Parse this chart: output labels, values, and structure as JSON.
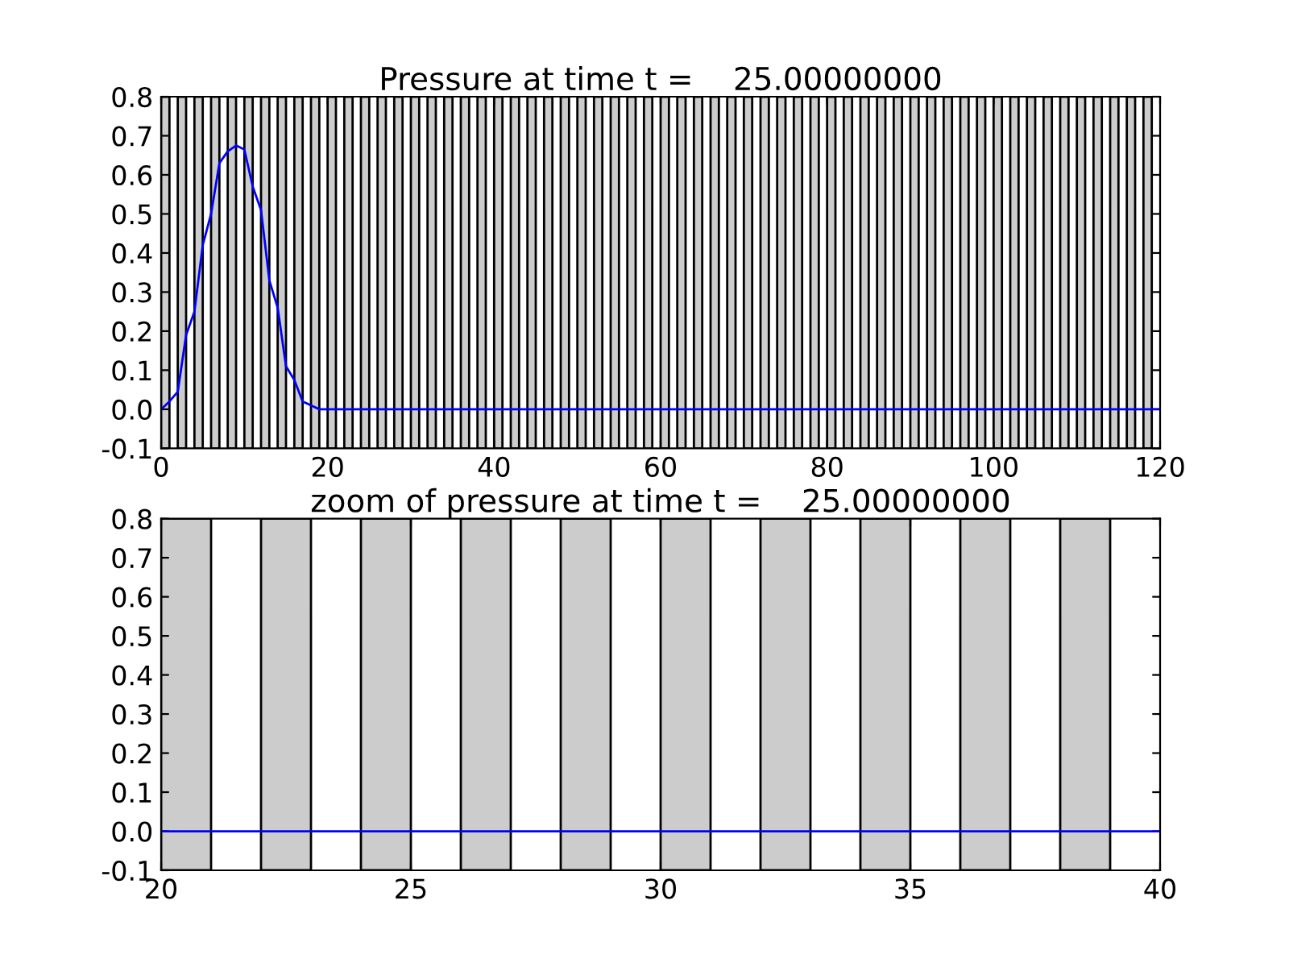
{
  "chart_data": [
    {
      "type": "line",
      "title": "Pressure at time t =    25.00000000",
      "series": [
        {
          "color": "#0000ff",
          "x": [
            0,
            1,
            2,
            3,
            4,
            5,
            6,
            7,
            8,
            9,
            10,
            11,
            12,
            13,
            14,
            15,
            16,
            17,
            18,
            19,
            20,
            120
          ],
          "values": [
            0,
            0.02,
            0.045,
            0.19,
            0.25,
            0.42,
            0.5,
            0.63,
            0.66,
            0.675,
            0.665,
            0.57,
            0.51,
            0.33,
            0.26,
            0.11,
            0.075,
            0.02,
            0.01,
            0,
            0,
            0
          ]
        }
      ],
      "xlim": [
        0,
        120
      ],
      "xticks": [
        0,
        20,
        40,
        60,
        80,
        100,
        120
      ],
      "ylim": [
        -0.1,
        0.8
      ],
      "yticks": [
        -0.1,
        {
          "value": 0,
          "label": "0.0"
        },
        0.1,
        0.2,
        0.3,
        0.4,
        0.5,
        0.6,
        0.7,
        0.8
      ],
      "bands": [
        {
          "axis": "x",
          "from": 0,
          "to": 1,
          "color": "#cccccc"
        },
        {
          "axis": "x",
          "from": 2,
          "to": 3,
          "color": "#cccccc"
        },
        {
          "axis": "x",
          "from": 4,
          "to": 5,
          "color": "#cccccc"
        },
        {
          "axis": "x",
          "from": 6,
          "to": 7,
          "color": "#cccccc"
        },
        {
          "axis": "x",
          "from": 8,
          "to": 9,
          "color": "#cccccc"
        },
        {
          "axis": "x",
          "from": 10,
          "to": 11,
          "color": "#cccccc"
        },
        {
          "axis": "x",
          "from": 12,
          "to": 13,
          "color": "#cccccc"
        },
        {
          "axis": "x",
          "from": 14,
          "to": 15,
          "color": "#cccccc"
        },
        {
          "axis": "x",
          "from": 16,
          "to": 17,
          "color": "#cccccc"
        },
        {
          "axis": "x",
          "from": 18,
          "to": 19,
          "color": "#cccccc"
        },
        {
          "axis": "x",
          "from": 20,
          "to": 21,
          "color": "#cccccc"
        },
        {
          "axis": "x",
          "from": 22,
          "to": 23,
          "color": "#cccccc"
        },
        {
          "axis": "x",
          "from": 24,
          "to": 25,
          "color": "#cccccc"
        },
        {
          "axis": "x",
          "from": 26,
          "to": 27,
          "color": "#cccccc"
        },
        {
          "axis": "x",
          "from": 28,
          "to": 29,
          "color": "#cccccc"
        },
        {
          "axis": "x",
          "from": 30,
          "to": 31,
          "color": "#cccccc"
        },
        {
          "axis": "x",
          "from": 32,
          "to": 33,
          "color": "#cccccc"
        },
        {
          "axis": "x",
          "from": 34,
          "to": 35,
          "color": "#cccccc"
        },
        {
          "axis": "x",
          "from": 36,
          "to": 37,
          "color": "#cccccc"
        },
        {
          "axis": "x",
          "from": 38,
          "to": 39,
          "color": "#cccccc"
        },
        {
          "axis": "x",
          "from": 40,
          "to": 41,
          "color": "#cccccc"
        },
        {
          "axis": "x",
          "from": 42,
          "to": 43,
          "color": "#cccccc"
        },
        {
          "axis": "x",
          "from": 44,
          "to": 45,
          "color": "#cccccc"
        },
        {
          "axis": "x",
          "from": 46,
          "to": 47,
          "color": "#cccccc"
        },
        {
          "axis": "x",
          "from": 48,
          "to": 49,
          "color": "#cccccc"
        },
        {
          "axis": "x",
          "from": 50,
          "to": 51,
          "color": "#cccccc"
        },
        {
          "axis": "x",
          "from": 52,
          "to": 53,
          "color": "#cccccc"
        },
        {
          "axis": "x",
          "from": 54,
          "to": 55,
          "color": "#cccccc"
        },
        {
          "axis": "x",
          "from": 56,
          "to": 57,
          "color": "#cccccc"
        },
        {
          "axis": "x",
          "from": 58,
          "to": 59,
          "color": "#cccccc"
        },
        {
          "axis": "x",
          "from": 60,
          "to": 61,
          "color": "#cccccc"
        },
        {
          "axis": "x",
          "from": 62,
          "to": 63,
          "color": "#cccccc"
        },
        {
          "axis": "x",
          "from": 64,
          "to": 65,
          "color": "#cccccc"
        },
        {
          "axis": "x",
          "from": 66,
          "to": 67,
          "color": "#cccccc"
        },
        {
          "axis": "x",
          "from": 68,
          "to": 69,
          "color": "#cccccc"
        },
        {
          "axis": "x",
          "from": 70,
          "to": 71,
          "color": "#cccccc"
        },
        {
          "axis": "x",
          "from": 72,
          "to": 73,
          "color": "#cccccc"
        },
        {
          "axis": "x",
          "from": 74,
          "to": 75,
          "color": "#cccccc"
        },
        {
          "axis": "x",
          "from": 76,
          "to": 77,
          "color": "#cccccc"
        },
        {
          "axis": "x",
          "from": 78,
          "to": 79,
          "color": "#cccccc"
        },
        {
          "axis": "x",
          "from": 80,
          "to": 81,
          "color": "#cccccc"
        },
        {
          "axis": "x",
          "from": 82,
          "to": 83,
          "color": "#cccccc"
        },
        {
          "axis": "x",
          "from": 84,
          "to": 85,
          "color": "#cccccc"
        },
        {
          "axis": "x",
          "from": 86,
          "to": 87,
          "color": "#cccccc"
        },
        {
          "axis": "x",
          "from": 88,
          "to": 89,
          "color": "#cccccc"
        },
        {
          "axis": "x",
          "from": 90,
          "to": 91,
          "color": "#cccccc"
        },
        {
          "axis": "x",
          "from": 92,
          "to": 93,
          "color": "#cccccc"
        },
        {
          "axis": "x",
          "from": 94,
          "to": 95,
          "color": "#cccccc"
        },
        {
          "axis": "x",
          "from": 96,
          "to": 97,
          "color": "#cccccc"
        },
        {
          "axis": "x",
          "from": 98,
          "to": 99,
          "color": "#cccccc"
        },
        {
          "axis": "x",
          "from": 100,
          "to": 101,
          "color": "#cccccc"
        },
        {
          "axis": "x",
          "from": 102,
          "to": 103,
          "color": "#cccccc"
        },
        {
          "axis": "x",
          "from": 104,
          "to": 105,
          "color": "#cccccc"
        },
        {
          "axis": "x",
          "from": 106,
          "to": 107,
          "color": "#cccccc"
        },
        {
          "axis": "x",
          "from": 108,
          "to": 109,
          "color": "#cccccc"
        },
        {
          "axis": "x",
          "from": 110,
          "to": 111,
          "color": "#cccccc"
        },
        {
          "axis": "x",
          "from": 112,
          "to": 113,
          "color": "#cccccc"
        },
        {
          "axis": "x",
          "from": 114,
          "to": 115,
          "color": "#cccccc"
        },
        {
          "axis": "x",
          "from": 116,
          "to": 117,
          "color": "#cccccc"
        },
        {
          "axis": "x",
          "from": 118,
          "to": 119,
          "color": "#cccccc"
        }
      ],
      "grid": false,
      "legend": false
    },
    {
      "type": "line",
      "title": "zoom of pressure at time t =    25.00000000",
      "series": [
        {
          "color": "#0000ff",
          "x": [
            20,
            40
          ],
          "values": [
            0,
            0
          ]
        }
      ],
      "xlim": [
        20,
        40
      ],
      "xticks": [
        20,
        25,
        30,
        35,
        40
      ],
      "ylim": [
        -0.1,
        0.8
      ],
      "yticks": [
        -0.1,
        {
          "value": 0,
          "label": "0.0"
        },
        0.1,
        0.2,
        0.3,
        0.4,
        0.5,
        0.6,
        0.7,
        0.8
      ],
      "bands": [
        {
          "axis": "x",
          "from": 20,
          "to": 21,
          "color": "#cccccc"
        },
        {
          "axis": "x",
          "from": 22,
          "to": 23,
          "color": "#cccccc"
        },
        {
          "axis": "x",
          "from": 24,
          "to": 25,
          "color": "#cccccc"
        },
        {
          "axis": "x",
          "from": 26,
          "to": 27,
          "color": "#cccccc"
        },
        {
          "axis": "x",
          "from": 28,
          "to": 29,
          "color": "#cccccc"
        },
        {
          "axis": "x",
          "from": 30,
          "to": 31,
          "color": "#cccccc"
        },
        {
          "axis": "x",
          "from": 32,
          "to": 33,
          "color": "#cccccc"
        },
        {
          "axis": "x",
          "from": 34,
          "to": 35,
          "color": "#cccccc"
        },
        {
          "axis": "x",
          "from": 36,
          "to": 37,
          "color": "#cccccc"
        },
        {
          "axis": "x",
          "from": 38,
          "to": 39,
          "color": "#cccccc"
        }
      ],
      "grid": false,
      "legend": false
    }
  ]
}
